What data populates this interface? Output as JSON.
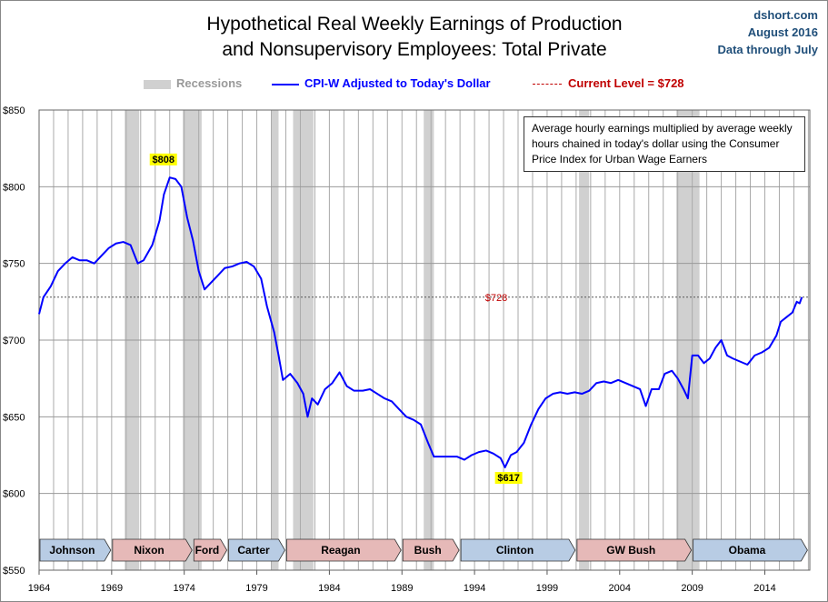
{
  "header": {
    "title_line1": "Hypothetical Real Weekly Earnings of Production",
    "title_line2": "and Nonsupervisory Employees: Total Private",
    "source": "dshort.com",
    "date": "August 2016",
    "through": "Data through July"
  },
  "legend": {
    "recessions": "Recessions",
    "series": "CPI-W Adjusted to Today's Dollar",
    "current": "Current Level = $728"
  },
  "note": "Average hourly earnings multiplied by average weekly hours chained in today's dollar using the Consumer Price Index for Urban Wage Earners",
  "colors": {
    "series": "#0000ff",
    "current": "#c00000",
    "recession": "#d0d0d0",
    "dem": "#b8cce4",
    "rep": "#e6b9b8",
    "label": "#ffff00"
  },
  "chart_data": {
    "type": "line",
    "title": "Hypothetical Real Weekly Earnings of Production and Nonsupervisory Employees: Total Private",
    "xlim": [
      1964,
      2017.1
    ],
    "ylim": [
      550,
      850
    ],
    "x_ticks": [
      1964,
      1969,
      1974,
      1979,
      1984,
      1989,
      1994,
      1999,
      2004,
      2009,
      2014
    ],
    "y_ticks": [
      550,
      600,
      650,
      700,
      750,
      800,
      850
    ],
    "y_tick_labels": [
      "$550",
      "$600",
      "$650",
      "$700",
      "$750",
      "$800",
      "$850"
    ],
    "current_level": 728,
    "current_label": "$728",
    "annotations": [
      {
        "x": 1973.0,
        "y": 808,
        "text": "$808"
      },
      {
        "x": 1996.1,
        "y": 617,
        "text": "$617"
      }
    ],
    "recessions": [
      [
        1969.9,
        1970.9
      ],
      [
        1973.9,
        1975.2
      ],
      [
        1980.0,
        1980.5
      ],
      [
        1981.5,
        1982.9
      ],
      [
        1990.5,
        1991.2
      ],
      [
        2001.2,
        2001.9
      ],
      [
        2007.9,
        2009.5
      ]
    ],
    "presidents": [
      {
        "name": "Johnson",
        "from": 1964,
        "to": 1969,
        "party": "dem"
      },
      {
        "name": "Nixon",
        "from": 1969,
        "to": 1974.6,
        "party": "rep"
      },
      {
        "name": "Ford",
        "from": 1974.6,
        "to": 1977,
        "party": "rep"
      },
      {
        "name": "Carter",
        "from": 1977,
        "to": 1981,
        "party": "dem"
      },
      {
        "name": "Reagan",
        "from": 1981,
        "to": 1989,
        "party": "rep"
      },
      {
        "name": "Bush",
        "from": 1989,
        "to": 1993,
        "party": "rep"
      },
      {
        "name": "Clinton",
        "from": 1993,
        "to": 2001,
        "party": "dem"
      },
      {
        "name": "GW Bush",
        "from": 2001,
        "to": 2009,
        "party": "rep"
      },
      {
        "name": "Obama",
        "from": 2009,
        "to": 2017,
        "party": "dem"
      }
    ],
    "series": [
      {
        "name": "CPI-W Adjusted to Today's Dollar",
        "x": [
          1964.0,
          1964.3,
          1964.8,
          1965.3,
          1965.8,
          1966.3,
          1966.8,
          1967.3,
          1967.8,
          1968.3,
          1968.8,
          1969.3,
          1969.8,
          1970.3,
          1970.8,
          1971.2,
          1971.8,
          1972.3,
          1972.6,
          1973.0,
          1973.4,
          1973.8,
          1974.2,
          1974.6,
          1975.0,
          1975.4,
          1975.8,
          1976.3,
          1976.8,
          1977.3,
          1977.8,
          1978.3,
          1978.8,
          1979.3,
          1979.7,
          1980.2,
          1980.5,
          1980.8,
          1981.3,
          1981.8,
          1982.2,
          1982.5,
          1982.8,
          1983.2,
          1983.7,
          1984.2,
          1984.7,
          1985.2,
          1985.7,
          1986.3,
          1986.8,
          1987.3,
          1987.8,
          1988.3,
          1988.8,
          1989.3,
          1989.8,
          1990.3,
          1990.8,
          1991.2,
          1991.8,
          1992.3,
          1992.8,
          1993.3,
          1993.8,
          1994.3,
          1994.8,
          1995.3,
          1995.8,
          1996.1,
          1996.5,
          1996.9,
          1997.4,
          1997.9,
          1998.4,
          1998.9,
          1999.4,
          1999.9,
          2000.4,
          2000.9,
          2001.4,
          2001.9,
          2002.4,
          2002.9,
          2003.4,
          2003.9,
          2004.4,
          2004.9,
          2005.4,
          2005.8,
          2006.2,
          2006.7,
          2007.1,
          2007.6,
          2008.0,
          2008.4,
          2008.7,
          2009.0,
          2009.4,
          2009.8,
          2010.2,
          2010.6,
          2011.0,
          2011.4,
          2011.8,
          2012.3,
          2012.8,
          2013.3,
          2013.8,
          2014.3,
          2014.8,
          2015.1,
          2015.5,
          2015.9,
          2016.2,
          2016.4,
          2016.55
        ],
        "y": [
          717,
          728,
          735,
          745,
          750,
          754,
          752,
          752,
          750,
          755,
          760,
          763,
          764,
          762,
          750,
          752,
          762,
          778,
          795,
          806,
          805,
          800,
          780,
          765,
          745,
          733,
          737,
          742,
          747,
          748,
          750,
          751,
          748,
          740,
          722,
          705,
          690,
          674,
          678,
          672,
          665,
          650,
          662,
          658,
          668,
          672,
          679,
          670,
          667,
          667,
          668,
          665,
          662,
          660,
          655,
          650,
          648,
          645,
          633,
          624,
          624,
          624,
          624,
          622,
          625,
          627,
          628,
          626,
          623,
          617,
          625,
          627,
          633,
          645,
          655,
          662,
          665,
          666,
          665,
          666,
          665,
          667,
          672,
          673,
          672,
          674,
          672,
          670,
          668,
          657,
          668,
          668,
          678,
          680,
          675,
          668,
          662,
          690,
          690,
          685,
          688,
          695,
          700,
          690,
          688,
          686,
          684,
          690,
          692,
          695,
          703,
          712,
          715,
          718,
          725,
          724,
          728
        ]
      }
    ]
  }
}
